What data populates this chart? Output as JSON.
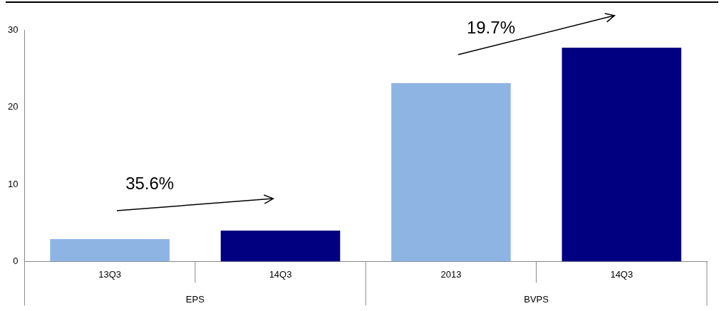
{
  "chart_data": {
    "type": "bar",
    "categories": [
      "13Q3",
      "14Q3",
      "2013",
      "14Q3"
    ],
    "values": [
      2.9,
      4.0,
      23.1,
      27.7
    ],
    "colors": [
      "#8eb4e3",
      "#000080",
      "#8eb4e3",
      "#000080"
    ],
    "ylim": [
      0,
      30
    ],
    "yticks": [
      0,
      10,
      20,
      30
    ],
    "grid": false,
    "legend": false,
    "annotations": [
      "35.6%",
      "19.7%",
      "EPS",
      "BVPS"
    ]
  }
}
